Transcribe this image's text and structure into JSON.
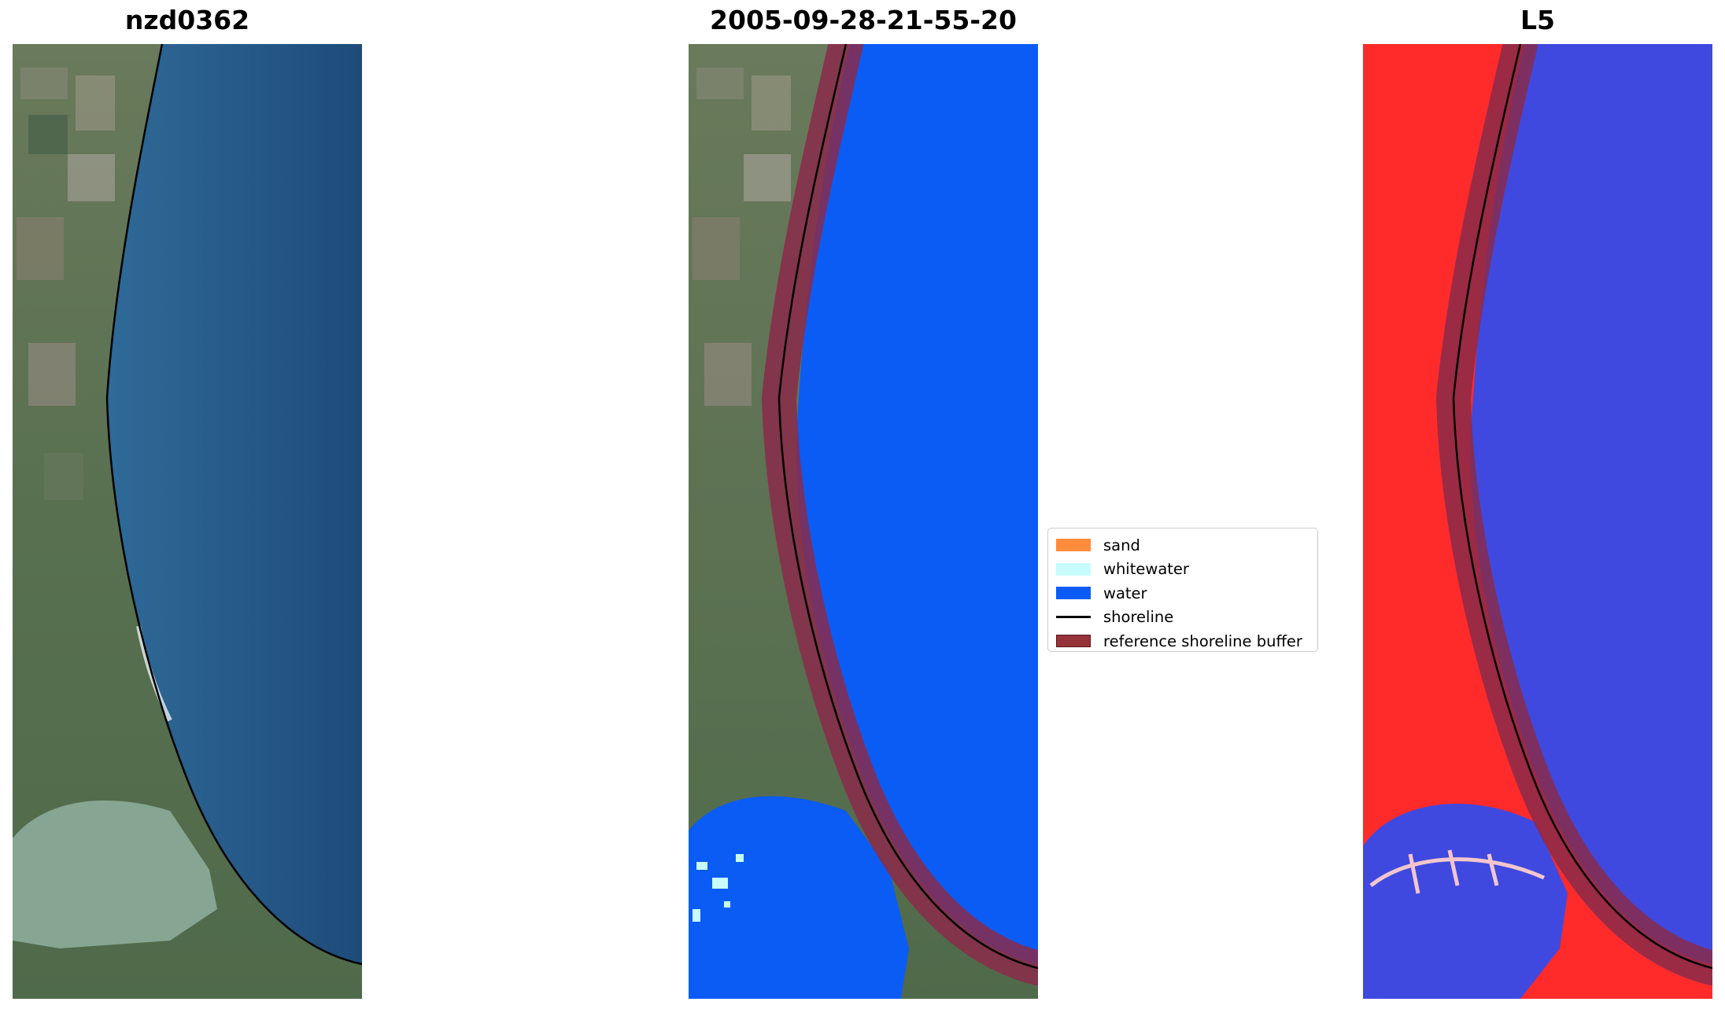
{
  "panels": [
    {
      "title": "nzd0362"
    },
    {
      "title": "2005-09-28-21-55-20"
    },
    {
      "title": "L5"
    }
  ],
  "legend": {
    "items": [
      {
        "label": "sand",
        "color": "#ff8c3a",
        "kind": "patch"
      },
      {
        "label": "whitewater",
        "color": "#c8fbfb",
        "kind": "patch"
      },
      {
        "label": "water",
        "color": "#0b5cf5",
        "kind": "patch"
      },
      {
        "label": "shoreline",
        "color": "#000000",
        "kind": "line"
      },
      {
        "label": "reference shoreline buffer",
        "color": "#96323a",
        "kind": "patch"
      }
    ]
  },
  "colors": {
    "sea_rgb": "#2a5d8c",
    "land_rgb": "#5e7452",
    "water_class": "#0b5cf5",
    "buffer": "#8a2a4a",
    "index_land": "#ff2a2a",
    "index_water": "#3f49e0"
  }
}
